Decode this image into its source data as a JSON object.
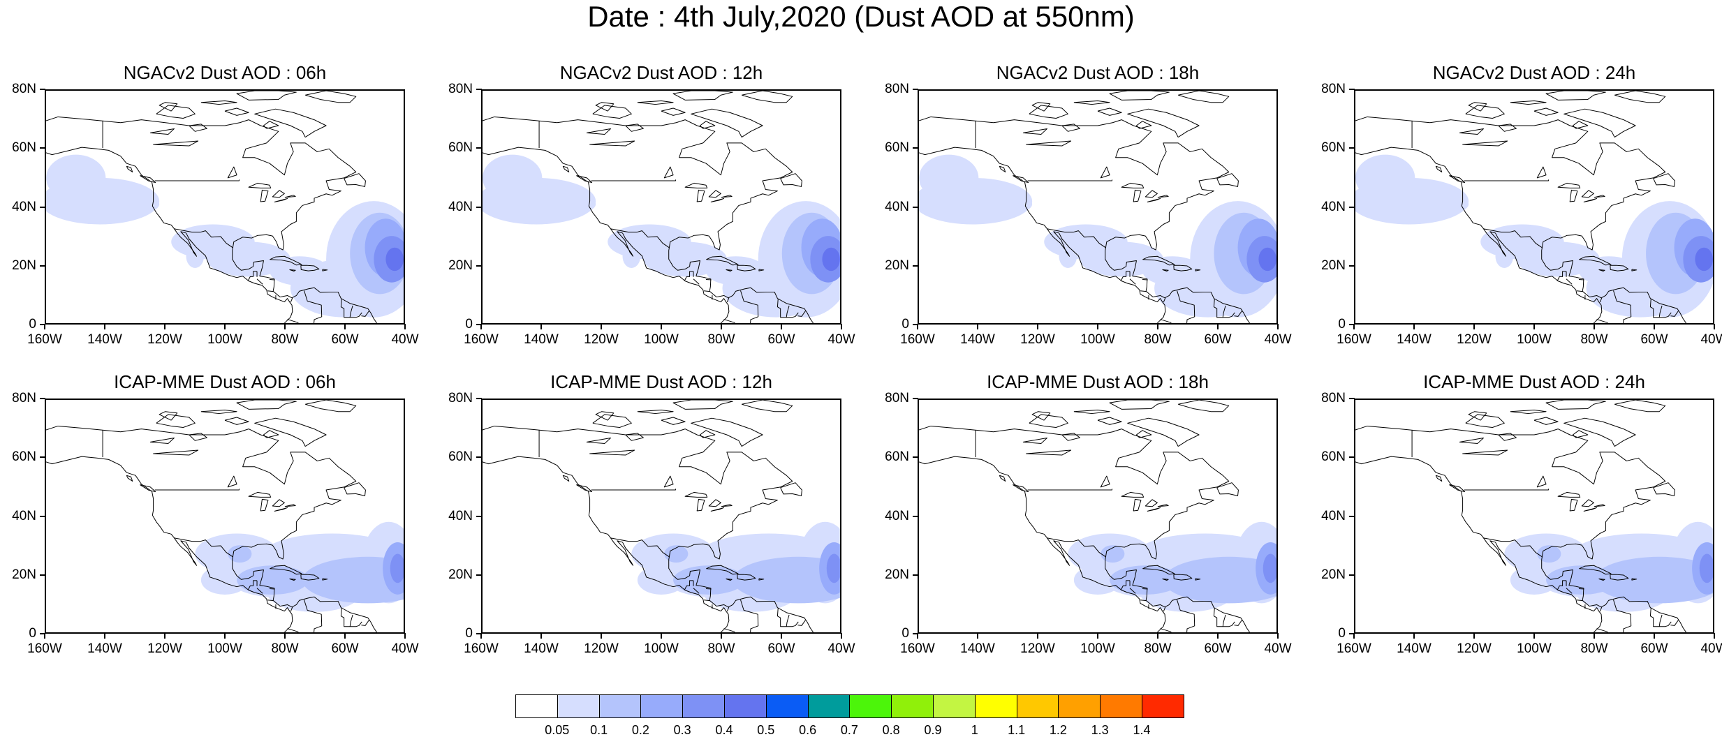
{
  "title": "Date : 4th July,2020 (Dust AOD at 550nm)",
  "y_ticks": [
    "80N",
    "60N",
    "40N",
    "20N",
    "0"
  ],
  "x_ticks": [
    "160W",
    "140W",
    "120W",
    "100W",
    "80W",
    "60W",
    "40W"
  ],
  "domain": {
    "lon": [
      -160,
      -40
    ],
    "lat": [
      0,
      80
    ]
  },
  "panels": [
    {
      "title": "NGACv2 Dust AOD : 06h",
      "model": "NGACv2",
      "lead": "06h"
    },
    {
      "title": "NGACv2 Dust AOD : 12h",
      "model": "NGACv2",
      "lead": "12h"
    },
    {
      "title": "NGACv2 Dust AOD : 18h",
      "model": "NGACv2",
      "lead": "18h"
    },
    {
      "title": "NGACv2 Dust AOD : 24h",
      "model": "NGACv2",
      "lead": "24h"
    },
    {
      "title": "ICAP-MME Dust AOD : 06h",
      "model": "ICAP-MME",
      "lead": "06h"
    },
    {
      "title": "ICAP-MME Dust AOD : 12h",
      "model": "ICAP-MME",
      "lead": "12h"
    },
    {
      "title": "ICAP-MME Dust AOD : 18h",
      "model": "ICAP-MME",
      "lead": "18h"
    },
    {
      "title": "ICAP-MME Dust AOD : 24h",
      "model": "ICAP-MME",
      "lead": "24h"
    }
  ],
  "colorbar": {
    "colors": [
      "#ffffff",
      "#d6defe",
      "#b4c4fc",
      "#97abfb",
      "#7e91f5",
      "#6474ef",
      "#0a5cf5",
      "#009c9c",
      "#4cf50a",
      "#90f00a",
      "#c3f542",
      "#ffff00",
      "#ffc800",
      "#ffa000",
      "#ff7a00",
      "#ff2a00"
    ],
    "labels": [
      "0.05",
      "0.1",
      "0.2",
      "0.3",
      "0.4",
      "0.5",
      "0.6",
      "0.7",
      "0.8",
      "0.9",
      "1",
      "1.1",
      "1.2",
      "1.3",
      "1.4"
    ]
  }
}
